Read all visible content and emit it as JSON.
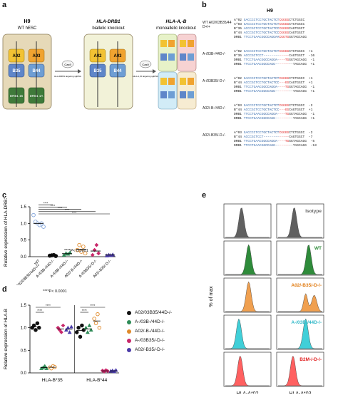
{
  "panels": {
    "a": "a",
    "b": "b",
    "c": "c",
    "d": "d",
    "e": "e"
  },
  "panel_a": {
    "cell1_title": "H9",
    "cell1_sub": "WT hESC",
    "cell2_title": "HLA-DRB1",
    "cell2_sub": "biallelic knockout",
    "cell3_title": "HLA-A,-B",
    "cell3_sub": "monoallelic knockout",
    "cas9": "Cas9",
    "arrow1_note": "HLA-DRB1 targeting sgRNA",
    "arrow2_note": "HLA-A,-B targeting sgRNA",
    "alleles": [
      "A02",
      "A03",
      "B35",
      "B44",
      "DRB1 15",
      "DRB1 1A"
    ],
    "colors": {
      "a02": "#f2c233",
      "a03": "#f0a330",
      "b35": "#5f86c9",
      "b44": "#6e9ed4",
      "drb": "#3f7a3a",
      "bg1": "#e6d9b8",
      "bg2": "#f2f2d8"
    }
  },
  "panel_b": {
    "title": "H9",
    "groups": [
      {
        "label": "WT A02/03B35/44 D+/+",
        "rows": [
          {
            "allele": "A*02",
            "seq": "GACCCCTCCTGCTACTCTCGGGGCTCTGGCC",
            "indel": ""
          },
          {
            "allele": "A*03",
            "seq": "GACCCCTCCTGCTACTCTCGGGGCTCTGGCC",
            "indel": ""
          },
          {
            "allele": "B*35",
            "seq": "ACCCGCTCCTGCTACTCCCGGGGCAGTGGCT",
            "indel": ""
          },
          {
            "allele": "B*44",
            "seq": "ACCCGCTCCTGCTACTCCCGGGGCAGTGGCT",
            "indel": ""
          },
          {
            "allele": "DRB1",
            "seq": "TTCCTGAACGGCCAGGAACGGTGGGTAGCAGG",
            "indel": ""
          }
        ]
      },
      {
        "label": "A-/03B-/44D-/-",
        "rows": [
          {
            "allele": "A*02",
            "seq": "GACCCCTCCTGCTACTCTCGGGGCTCTGGCC",
            "indel": "+1"
          },
          {
            "allele": "B*35",
            "seq": "ACCCGCTCCT-------------CAGTGGCT",
            "indel": "-16"
          },
          {
            "allele": "DRB1",
            "seq": "TTCCTGAACGGCCAGGA----TGGGTAGCAGG",
            "indel": "-1"
          },
          {
            "allele": "DRB1",
            "seq": "TTCCTGAACGGCCAGG---------TAGCAGG",
            "indel": "+1"
          }
        ]
      },
      {
        "label": "A-/03B35/-D-/-",
        "rows": [
          {
            "allele": "A*02",
            "seq": "GACCCCTCCTGCTACTCTCGGGGCTCTGGCC",
            "indel": "+1"
          },
          {
            "allele": "B*44",
            "seq": "ACCCGCTCCTGCTACTCC---GGCAGTGGCT",
            "indel": "+1"
          },
          {
            "allele": "DRB1",
            "seq": "TTCCTGAACGGCCAGGA----TGGGTAGCAGG",
            "indel": "-1"
          },
          {
            "allele": "DRB1",
            "seq": "TTCCTGAACGGCCAGG---------TAGCAGG",
            "indel": "+1"
          }
        ]
      },
      {
        "label": "A02/-B-/44D-/-",
        "rows": [
          {
            "allele": "A*03",
            "seq": "GACCCCTCCTGCTACTCTCGGGGCTCTGGCC",
            "indel": "-2"
          },
          {
            "allele": "B*44",
            "seq": "ACCCGCTCCTGCTACTCC---GGCAGTGGCT",
            "indel": "+1"
          },
          {
            "allele": "DRB1",
            "seq": "TTCCTGAACGGCCAGGA----TGGGTAGCAGG",
            "indel": "-1"
          },
          {
            "allele": "DRB1",
            "seq": "TTCCTGAACGGCCAGG---------TAGCAGG",
            "indel": "+1"
          }
        ]
      },
      {
        "label": "A02/-B35/-D-/-",
        "rows": [
          {
            "allele": "A*03",
            "seq": "GACCCCTCCTGCTACTCTCGGGGCTCTGGCC",
            "indel": "-2"
          },
          {
            "allele": "B*44",
            "seq": "ACCCGCTCCT-------------CAGTGGCT",
            "indel": "-7"
          },
          {
            "allele": "DRB1",
            "seq": "TTCCTGAACGGCCAGGA----TGGGTAGCAGG",
            "indel": "-5"
          },
          {
            "allele": "DRB1",
            "seq": "TTCCTGAACGGCCAGG---------TAGCAGG",
            "indel": "-13"
          }
        ]
      }
    ]
  },
  "chart_data": [
    {
      "panel": "c",
      "type": "scatter",
      "ylabel": "Relative expression of HLA-DRB1",
      "ylim": [
        0,
        1.5
      ],
      "yticks": [
        "0.0",
        "0.5",
        "1.0",
        "1.5"
      ],
      "annotation": "****P< 0.0001",
      "sig": "****",
      "categories": [
        "WT A02/03B35/44D+/+",
        "A-/03B-/44D-/-",
        "A-/03B-/44D-/-",
        "A02/-B-/44D-/-",
        "A-/03B35/-D-/-",
        "A02/-B35/-D-/-"
      ],
      "tick_labels": [
        "WT\nA02/03B35/44D+/+",
        "A-/03B-/44D-/-",
        "A-/03B-/44D-/-",
        "A02/-B-/44D-/-",
        "A-/03B35/-D-/-",
        "A02/-B35/-D-/-"
      ],
      "series": [
        {
          "color": "#7b9fd8",
          "shape": "circle",
          "filled": false,
          "values": [
            1.25,
            1.05,
            1.0,
            0.95,
            1.0,
            0.9
          ],
          "mean": 1.0
        },
        {
          "color": "#111111",
          "shape": "circle",
          "filled": true,
          "values": [
            0.03,
            0.04,
            0.05,
            0.02
          ],
          "mean": 0.04
        },
        {
          "color": "#2e8b57",
          "shape": "triangle",
          "filled": true,
          "values": [
            0.05,
            0.1,
            0.08,
            0.12
          ],
          "mean": 0.09
        },
        {
          "color": "#e08a2a",
          "shape": "circle",
          "filled": false,
          "values": [
            0.2,
            0.35,
            0.15,
            0.3,
            0.1
          ],
          "mean": 0.22
        },
        {
          "color": "#c8286a",
          "shape": "diamond",
          "filled": true,
          "values": [
            0.05,
            0.2,
            0.35,
            0.1
          ],
          "mean": 0.17
        },
        {
          "color": "#4b3ca8",
          "shape": "triangle",
          "filled": true,
          "values": [
            0.03,
            0.05,
            0.04,
            0.06
          ],
          "mean": 0.05
        }
      ]
    },
    {
      "panel": "d",
      "type": "scatter",
      "ylabel": "Relative expression of HLA-B",
      "ylim": [
        0,
        1.5
      ],
      "yticks": [
        "0.0",
        "0.5",
        "1.0",
        "1.5"
      ],
      "annotation": "****P< 0.0001",
      "sig": "****",
      "categories": [
        "HLA-B*35",
        "HLA-B*44"
      ],
      "legend": [
        {
          "label": "A02/03B35/44D-/-",
          "color": "#111111"
        },
        {
          "label": "A-/03B-/44D-/-",
          "color": "#2e8b57"
        },
        {
          "label": "A02/-B-/44D-/-",
          "color": "#e08a2a"
        },
        {
          "label": "A-/03B35/-D-/-",
          "color": "#c8286a"
        },
        {
          "label": "A02/-B35/-D-/-",
          "color": "#4b3ca8"
        }
      ],
      "series": [
        {
          "color": "#111111",
          "shape": "circle",
          "filled": true,
          "b35": [
            1.0,
            1.05,
            0.95,
            1.1,
            1.0
          ],
          "b44": [
            0.9,
            1.0,
            0.8,
            1.05,
            0.95
          ]
        },
        {
          "color": "#2e8b57",
          "shape": "triangle",
          "filled": true,
          "b35": [
            0.1,
            0.12,
            0.15,
            0.1
          ],
          "b44": [
            1.0,
            0.9,
            1.05,
            0.95
          ]
        },
        {
          "color": "#e08a2a",
          "shape": "circle",
          "filled": false,
          "b35": [
            0.12,
            0.1,
            0.15,
            0.13
          ],
          "b44": [
            1.2,
            1.1,
            1.3,
            1.0
          ]
        },
        {
          "color": "#c8286a",
          "shape": "diamond",
          "filled": true,
          "b35": [
            1.0,
            0.95,
            0.9,
            1.05
          ],
          "b44": [
            0.05,
            0.03,
            0.06,
            0.04
          ]
        },
        {
          "color": "#4b3ca8",
          "shape": "triangle",
          "filled": true,
          "b35": [
            0.95,
            1.0,
            0.9,
            1.02
          ],
          "b44": [
            0.04,
            0.05,
            0.03,
            0.06
          ]
        }
      ]
    },
    {
      "panel": "e",
      "type": "area",
      "ylabel": "% of max",
      "xlabels": [
        "HLA-A*02",
        "HLA-A*03"
      ],
      "rows": [
        {
          "label": "Isotype",
          "color": "#606060",
          "label_color": "#666666",
          "peak_a02": 0.28,
          "peak_a03": 0.28,
          "label_col": 1
        },
        {
          "label": "WT",
          "color": "#2e8b3a",
          "label_color": "#2e8b3a",
          "peak_a02": 0.45,
          "peak_a03": 0.62,
          "label_col": 1
        },
        {
          "label": "A02/-B35/-D-/-",
          "color": "#f0a050",
          "label_color": "#e07a10",
          "peak_a02": 0.45,
          "peak_a03": 0.55,
          "label_col": 0
        },
        {
          "label": "A-/03B-/44D-/-",
          "color": "#40cfd8",
          "label_color": "#30b8c8",
          "peak_a02": 0.22,
          "peak_a03": 0.55,
          "label_col": 0
        },
        {
          "label": "B2M-/-D-/-",
          "color": "#ff6060",
          "label_color": "#e02020",
          "peak_a02": 0.25,
          "peak_a03": 0.25,
          "label_col": 0
        }
      ]
    }
  ]
}
